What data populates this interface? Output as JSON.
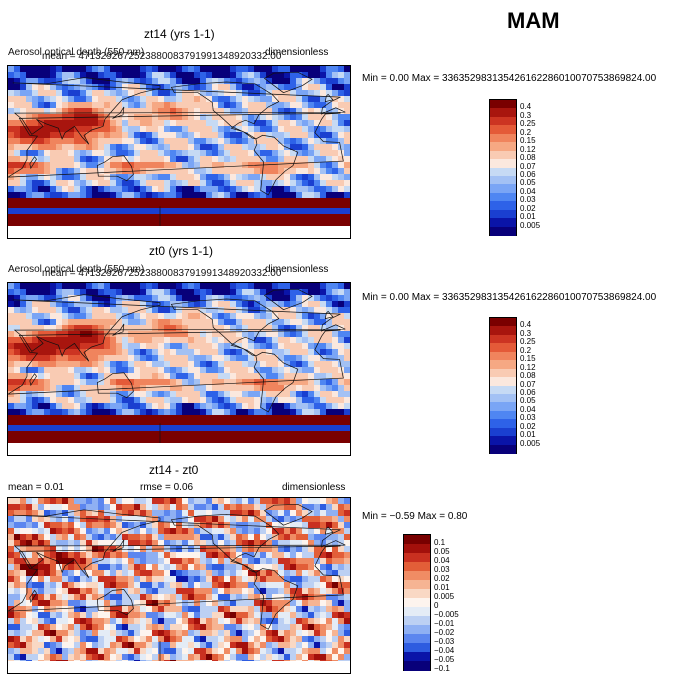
{
  "season": "MAM",
  "colors": {
    "seq": [
      "#08007a",
      "#0a14a8",
      "#1a3fd0",
      "#2e62e8",
      "#4f86f2",
      "#7aa5f5",
      "#a3c1f4",
      "#c6daf4",
      "#fbe8de",
      "#f9cbb3",
      "#f6a883",
      "#f0845d",
      "#e45a38",
      "#cc3422",
      "#a8150e",
      "#7a0000"
    ],
    "div": [
      "#08007a",
      "#0a14a8",
      "#2e5ce0",
      "#5c86ef",
      "#8fb0f3",
      "#bcd0f3",
      "#e4ecf6",
      "#fdf4ee",
      "#f9d8c4",
      "#f6b493",
      "#f08c64",
      "#e25e38",
      "#c93020",
      "#a3100b",
      "#780000"
    ]
  },
  "panels": [
    {
      "title": "zt14 (yrs 1-1)",
      "desc": "Aerosol optical depth (550 nm)",
      "mean": "mean = 4713292672523880083791991348920332.00",
      "units": "dimensionless",
      "minmax": "Min =    0.00 Max = 3363529831354261622860100707538698​24.00"
    },
    {
      "title": "zt0 (yrs 1-1)",
      "desc": "Aerosol optical depth (550 nm)",
      "mean": "mean = 4713292672523880083791991348920332.00",
      "units": "dimensionless",
      "minmax": "Min =    0.00 Max = 336352983135426162286010070753869824.00"
    },
    {
      "title": "zt14 - zt0",
      "mean": "mean =    0.01",
      "rmse": "rmse =    0.06",
      "units": "dimensionless",
      "minmax": "Min =  −0.59  Max =    0.80"
    }
  ],
  "chart_data": [
    {
      "type": "heatmap",
      "title": "zt14 (yrs 1-1)",
      "variable": "Aerosol optical depth (550 nm)",
      "units": "dimensionless",
      "min": 0.0,
      "colorbar_levels": [
        "0.4",
        "0.3",
        "0.25",
        "0.2",
        "0.15",
        "0.12",
        "0.08",
        "0.07",
        "0.06",
        "0.05",
        "0.04",
        "0.03",
        "0.02",
        "0.01",
        "0.005"
      ]
    },
    {
      "type": "heatmap",
      "title": "zt0 (yrs 1-1)",
      "variable": "Aerosol optical depth (550 nm)",
      "units": "dimensionless",
      "min": 0.0,
      "colorbar_levels": [
        "0.4",
        "0.3",
        "0.25",
        "0.2",
        "0.15",
        "0.12",
        "0.08",
        "0.07",
        "0.06",
        "0.05",
        "0.04",
        "0.03",
        "0.02",
        "0.01",
        "0.005"
      ]
    },
    {
      "type": "heatmap",
      "title": "zt14 - zt0",
      "units": "dimensionless",
      "mean": 0.01,
      "rmse": 0.06,
      "min": -0.59,
      "max": 0.8,
      "colorbar_levels": [
        "0.1",
        "0.05",
        "0.04",
        "0.03",
        "0.02",
        "0.01",
        "0.005",
        "0",
        "−0.005",
        "−0.01",
        "−0.02",
        "−0.03",
        "−0.04",
        "−0.05",
        "−0.1"
      ]
    }
  ]
}
